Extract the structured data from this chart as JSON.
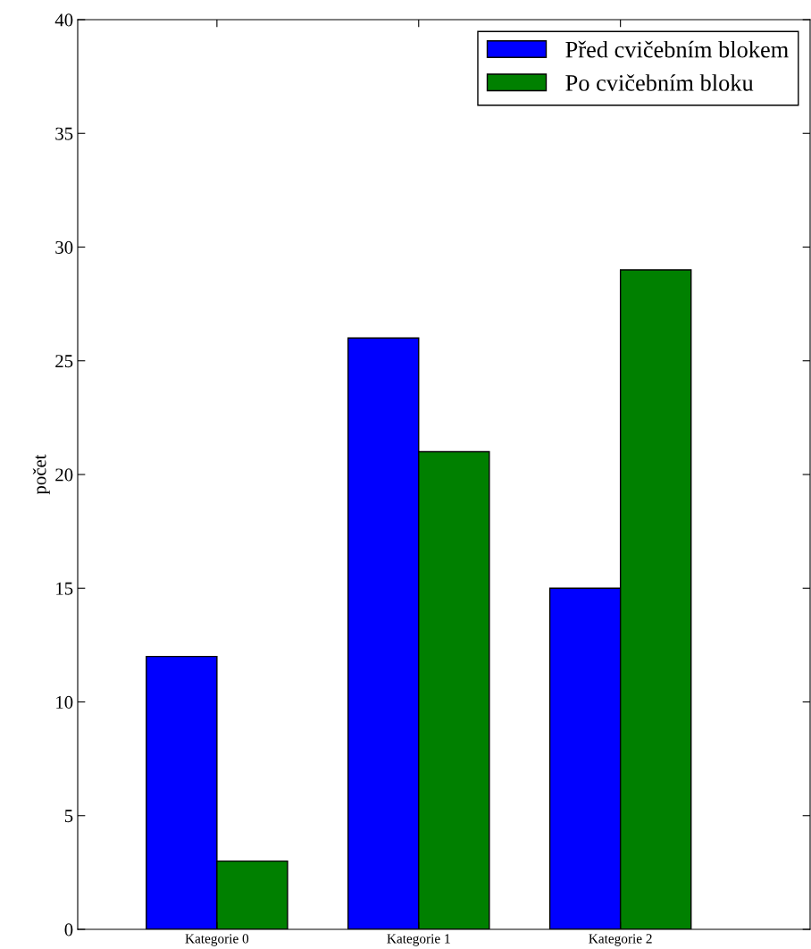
{
  "chart_data": {
    "type": "bar",
    "ylabel": "počet",
    "categories": [
      "Kategorie 0",
      "Kategorie 1",
      "Kategorie 2"
    ],
    "series": [
      {
        "name": "Před cvičebním blokem",
        "color": "#0000ff",
        "values": [
          12,
          26,
          15
        ]
      },
      {
        "name": "Po cvičebním bloku",
        "color": "#008000",
        "values": [
          3,
          21,
          29
        ]
      }
    ],
    "ylim": [
      0,
      40
    ],
    "yticks": [
      0,
      5,
      10,
      15,
      20,
      25,
      30,
      35,
      40
    ],
    "grid": false,
    "legend": "top right"
  }
}
